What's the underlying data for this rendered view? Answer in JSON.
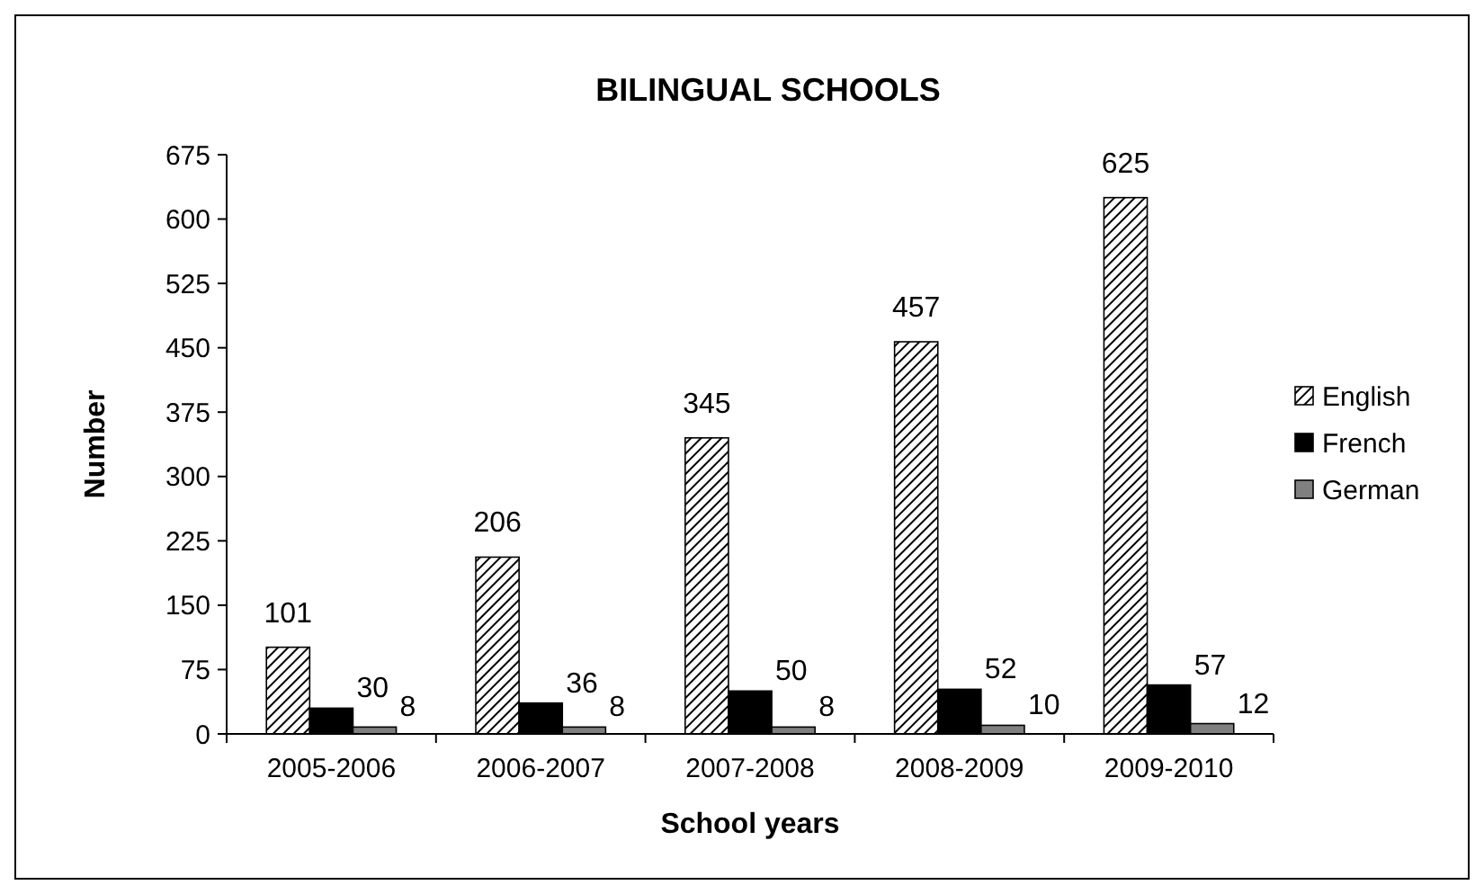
{
  "chart_data": {
    "type": "bar",
    "title": "BILINGUAL SCHOOLS",
    "xlabel": "School years",
    "ylabel": "Number",
    "categories": [
      "2005-2006",
      "2006-2007",
      "2007-2008",
      "2008-2009",
      "2009-2010"
    ],
    "series": [
      {
        "name": "English",
        "color": "#000000",
        "values": [
          101,
          206,
          345,
          457,
          625
        ]
      },
      {
        "name": "French",
        "color": "#000000",
        "values": [
          30,
          36,
          50,
          52,
          57
        ]
      },
      {
        "name": "German",
        "color": "#808080",
        "values": [
          8,
          8,
          8,
          10,
          12
        ]
      }
    ],
    "ylim": [
      0,
      675
    ],
    "yticks": [
      0,
      75,
      150,
      225,
      300,
      375,
      450,
      525,
      600,
      675
    ],
    "data_labels": true,
    "legend": "right",
    "grid": false
  }
}
